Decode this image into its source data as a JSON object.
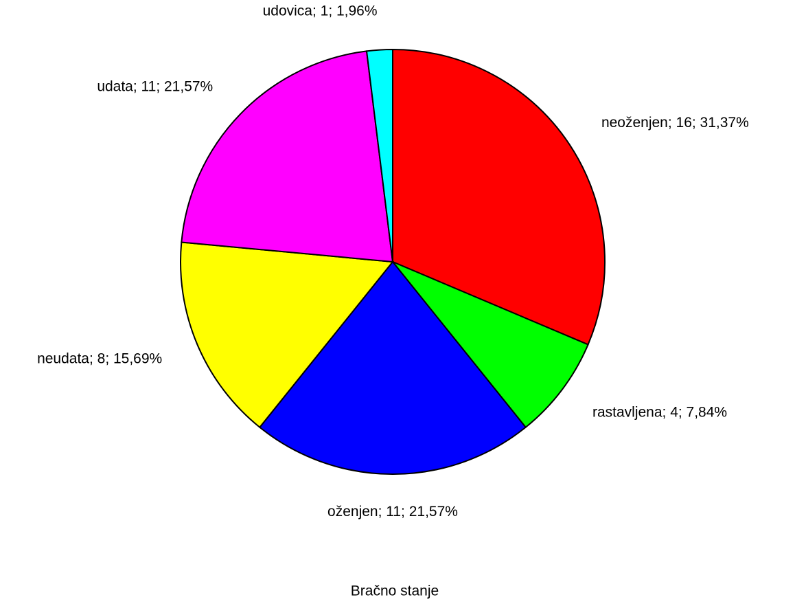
{
  "chart_data": {
    "type": "pie",
    "title": "Bračno stanje",
    "values": [
      16,
      4,
      11,
      8,
      11,
      1
    ],
    "value_labels": [
      "neoženjen; 16; 31,37%",
      "rastavljena; 4; 7,84%",
      "oženjen; 11; 21,57%",
      "neudata; 8; 15,69%",
      "udata; 11; 21,57%",
      "udovica; 1; 1,96%"
    ],
    "colors": [
      "#ff0000",
      "#00ff00",
      "#0000ff",
      "#ffff00",
      "#ff00ff",
      "#00ffff"
    ]
  }
}
